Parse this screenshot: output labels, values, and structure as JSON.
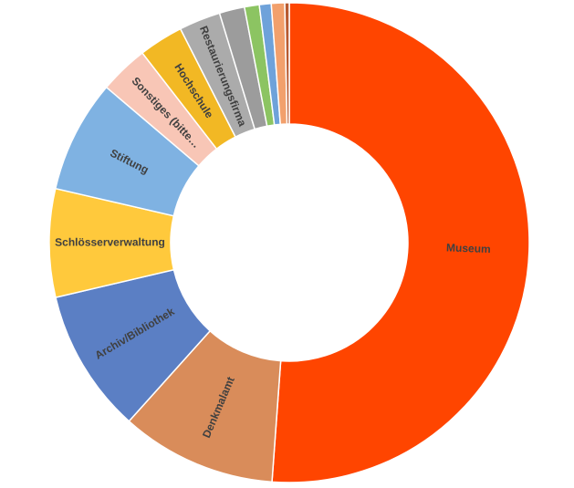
{
  "chart_data": {
    "type": "donut",
    "categories": [
      "Museum",
      "Denkmalamt",
      "Archiv/Bibliothek",
      "Schlösserverwaltung",
      "Stiftung",
      "Sonstiges (bitte…",
      "Hochschule",
      "Restaurierungsfirma",
      null,
      null,
      null,
      null,
      null
    ],
    "values": [
      51.2,
      10.5,
      9.7,
      7.3,
      7.6,
      3.3,
      3.0,
      2.8,
      1.7,
      1.0,
      0.8,
      0.9,
      0.3
    ],
    "colors": [
      "#ff4500",
      "#d98c5a",
      "#5b7fc4",
      "#ffc93c",
      "#7fb2e2",
      "#f8c6b6",
      "#f2b824",
      "#ababab",
      "#9c9c9c",
      "#8cc462",
      "#6ea2da",
      "#f2a06c",
      "#b85a30"
    ]
  }
}
